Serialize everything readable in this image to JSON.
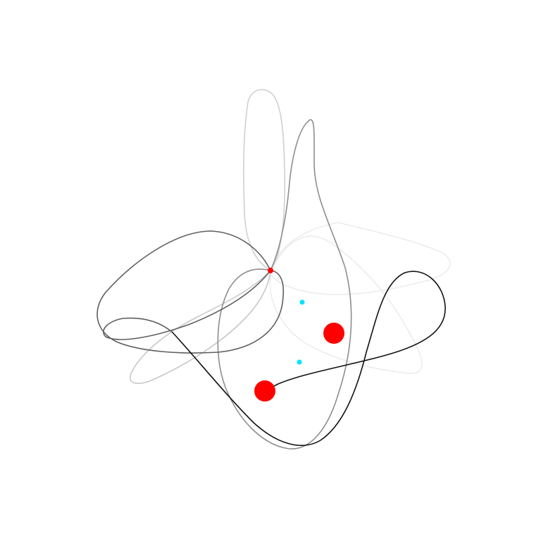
{
  "background_color": "#ffffff",
  "trails": [
    {
      "id": "trail-1",
      "color": "#ececec"
    },
    {
      "id": "trail-2",
      "color": "#c8c8c8"
    },
    {
      "id": "trail-3",
      "color": "#d0d0d0"
    },
    {
      "id": "trail-4",
      "color": "#8e8e8e"
    },
    {
      "id": "trail-5",
      "color": "#5e5e5e"
    },
    {
      "id": "trail-6",
      "color": "#111111"
    }
  ],
  "bodies": [
    {
      "id": "large-red-body-upper",
      "color": "#ff0000",
      "size": "large"
    },
    {
      "id": "large-red-body-lower",
      "color": "#ff0000",
      "size": "large"
    },
    {
      "id": "small-red-body",
      "color": "#ff0000",
      "size": "small"
    },
    {
      "id": "cyan-point-upper",
      "color": "#00e5ff",
      "size": "small"
    },
    {
      "id": "cyan-point-lower",
      "color": "#00e5ff",
      "size": "small"
    }
  ]
}
